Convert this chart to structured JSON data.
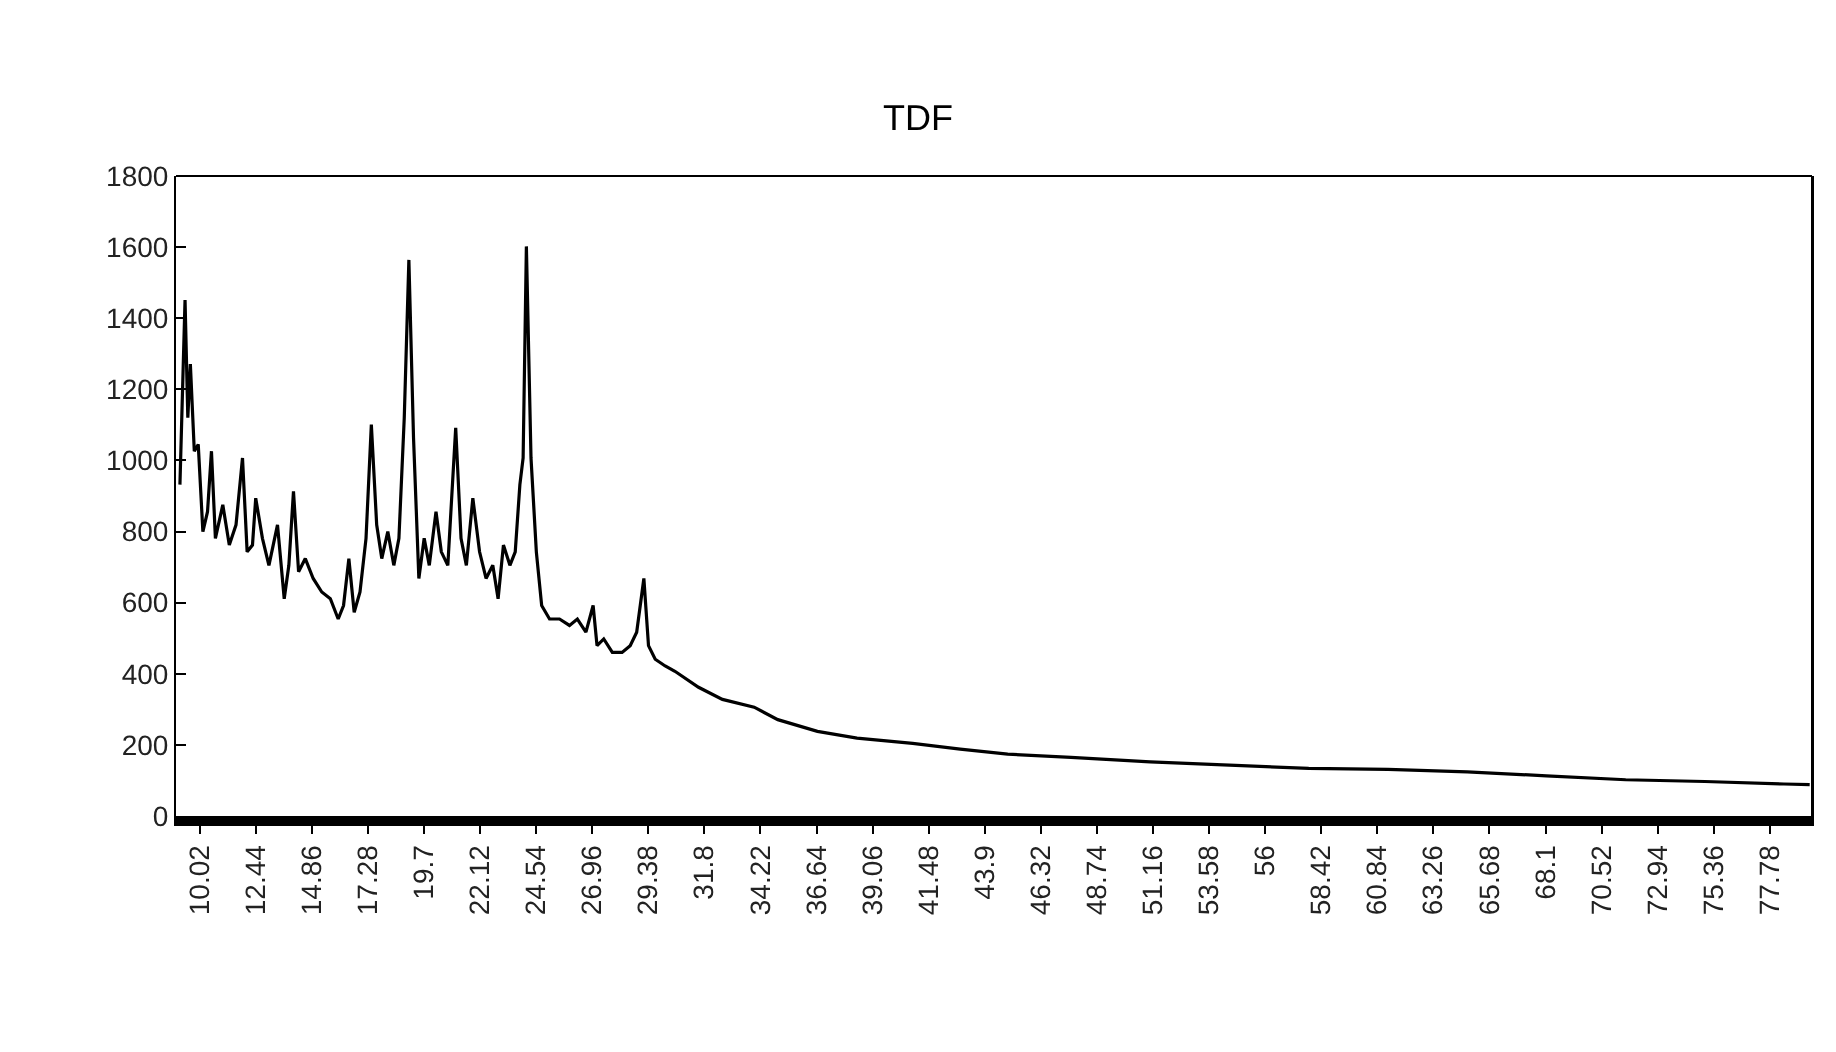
{
  "chart_data": {
    "type": "line",
    "title": "TDF",
    "x": [
      9.17,
      9.39,
      9.51,
      9.62,
      9.79,
      9.96,
      10.16,
      10.36,
      10.53,
      10.7,
      11.02,
      11.3,
      11.59,
      11.87,
      12.07,
      12.3,
      12.44,
      12.73,
      13.01,
      13.38,
      13.67,
      13.87,
      14.07,
      14.29,
      14.58,
      14.92,
      15.29,
      15.66,
      16.0,
      16.23,
      16.46,
      16.69,
      16.94,
      17.2,
      17.43,
      17.66,
      17.88,
      18.14,
      18.4,
      18.62,
      18.85,
      19.05,
      19.25,
      19.48,
      19.71,
      19.93,
      20.22,
      20.45,
      20.73,
      21.07,
      21.3,
      21.53,
      21.81,
      22.1,
      22.38,
      22.67,
      22.9,
      23.13,
      23.41,
      23.64,
      23.84,
      23.98,
      24.12,
      24.32,
      24.55,
      24.78,
      25.12,
      25.55,
      25.98,
      26.32,
      26.69,
      27.0,
      27.17,
      27.46,
      27.83,
      28.25,
      28.6,
      28.88,
      29.19,
      29.39,
      29.68,
      30.11,
      30.53,
      31.55,
      32.58,
      33.95,
      34.97,
      36.68,
      38.39,
      40.79,
      42.84,
      44.89,
      47.62,
      51.04,
      54.46,
      57.88,
      61.3,
      64.72,
      68.14,
      71.56,
      74.97,
      78.39,
      79.5
    ],
    "series": [
      {
        "color": "#000000",
        "values": [
          932,
          1451,
          1120,
          1271,
          1026,
          1045,
          800,
          856,
          1026,
          781,
          875,
          762,
          819,
          1007,
          743,
          762,
          894,
          781,
          705,
          819,
          611,
          705,
          913,
          687,
          724,
          668,
          630,
          611,
          554,
          592,
          724,
          573,
          630,
          781,
          1101,
          819,
          724,
          800,
          705,
          781,
          1120,
          1564,
          1064,
          668,
          781,
          705,
          856,
          743,
          705,
          1092,
          781,
          705,
          894,
          743,
          668,
          705,
          611,
          762,
          705,
          743,
          932,
          1007,
          1602,
          1007,
          743,
          592,
          554,
          554,
          536,
          554,
          517,
          592,
          479,
          498,
          460,
          460,
          479,
          517,
          668,
          479,
          441,
          422,
          407,
          362,
          328,
          306,
          271,
          238,
          219,
          204,
          188,
          174,
          165,
          152,
          143,
          134,
          131,
          124,
          113,
          102,
          97,
          90,
          88
        ]
      }
    ],
    "xlim": [
      9.0,
      79.6
    ],
    "xticks": [
      10.02,
      12.44,
      14.86,
      17.28,
      19.7,
      22.12,
      24.54,
      26.96,
      29.38,
      31.8,
      34.22,
      36.64,
      39.06,
      41.48,
      43.9,
      46.32,
      48.74,
      51.16,
      53.58,
      56,
      58.42,
      60.84,
      63.26,
      65.68,
      68.1,
      70.52,
      72.94,
      75.36,
      77.78
    ],
    "ylim": [
      0,
      1800
    ],
    "yticks": [
      0,
      200,
      400,
      600,
      800,
      1000,
      1200,
      1400,
      1600,
      1800
    ],
    "marker": "none",
    "line_style": "solid"
  }
}
